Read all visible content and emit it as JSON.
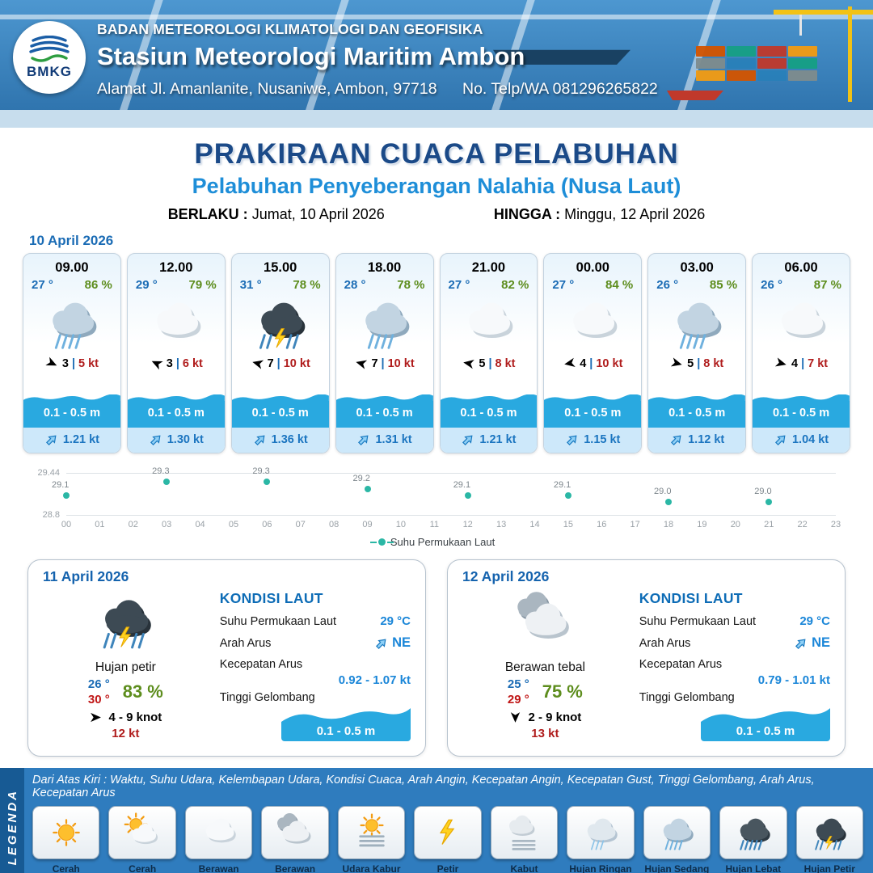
{
  "header": {
    "logo_text": "BMKG",
    "org": "BADAN METEOROLOGI KLIMATOLOGI DAN GEOFISIKA",
    "station": "Stasiun Meteorologi Maritim Ambon",
    "address": "Alamat Jl. Amanlanite, Nusaniwe, Ambon, 97718",
    "phone": "No. Telp/WA  081296265822"
  },
  "title": {
    "main": "PRAKIRAAN CUACA PELABUHAN",
    "subtitle": "Pelabuhan Penyeberangan Nalahia (Nusa Laut)",
    "valid_from_label": "BERLAKU :",
    "valid_from": "Jumat, 10 April 2026",
    "valid_to_label": "HINGGA :",
    "valid_to": "Minggu, 12 April 2026"
  },
  "hourly": {
    "date": "10 April 2026",
    "sep": "|",
    "cards": [
      {
        "time": "09.00",
        "temp": "27 °",
        "rh": "86 %",
        "icon": "hujan-sedang",
        "wind": "3",
        "gust": "5 kt",
        "wind_dir_deg": 25,
        "wave": "0.1 - 0.5 m",
        "current": "1.21 kt"
      },
      {
        "time": "12.00",
        "temp": "29 °",
        "rh": "79 %",
        "icon": "berawan",
        "wind": "3",
        "gust": "6 kt",
        "wind_dir_deg": 205,
        "wave": "0.1 - 0.5 m",
        "current": "1.30 kt"
      },
      {
        "time": "15.00",
        "temp": "31 °",
        "rh": "78 %",
        "icon": "hujan-petir",
        "wind": "7",
        "gust": "10 kt",
        "wind_dir_deg": 195,
        "wave": "0.1 - 0.5 m",
        "current": "1.36 kt"
      },
      {
        "time": "18.00",
        "temp": "28 °",
        "rh": "78 %",
        "icon": "hujan-sedang",
        "wind": "7",
        "gust": "10 kt",
        "wind_dir_deg": 195,
        "wave": "0.1 - 0.5 m",
        "current": "1.31 kt"
      },
      {
        "time": "21.00",
        "temp": "27 °",
        "rh": "82 %",
        "icon": "berawan",
        "wind": "5",
        "gust": "8 kt",
        "wind_dir_deg": 190,
        "wave": "0.1 - 0.5 m",
        "current": "1.21 kt"
      },
      {
        "time": "00.00",
        "temp": "27 °",
        "rh": "84 %",
        "icon": "berawan",
        "wind": "4",
        "gust": "10 kt",
        "wind_dir_deg": 170,
        "wave": "0.1 - 0.5 m",
        "current": "1.15 kt"
      },
      {
        "time": "03.00",
        "temp": "26 °",
        "rh": "85 %",
        "icon": "hujan-sedang",
        "wind": "5",
        "gust": "8 kt",
        "wind_dir_deg": 15,
        "wave": "0.1 - 0.5 m",
        "current": "1.12 kt"
      },
      {
        "time": "06.00",
        "temp": "26 °",
        "rh": "87 %",
        "icon": "berawan",
        "wind": "4",
        "gust": "7 kt",
        "wind_dir_deg": 15,
        "wave": "0.1 - 0.5 m",
        "current": "1.04 kt"
      }
    ]
  },
  "chart_data": {
    "type": "scatter",
    "title": "Suhu Permukaan Laut",
    "legend": "Suhu Permukaan Laut",
    "point_color": "#2bb7a5",
    "ylim": [
      28.8,
      29.44
    ],
    "y_tick_labels": [
      "29.44",
      "28.8"
    ],
    "x_ticks": [
      "00",
      "01",
      "02",
      "03",
      "04",
      "05",
      "06",
      "07",
      "08",
      "09",
      "10",
      "11",
      "12",
      "13",
      "14",
      "15",
      "16",
      "17",
      "18",
      "19",
      "20",
      "21",
      "22",
      "23"
    ],
    "series": [
      {
        "name": "Suhu Permukaan Laut",
        "points": [
          {
            "x": 0,
            "y": 29.1
          },
          {
            "x": 3,
            "y": 29.3
          },
          {
            "x": 6,
            "y": 29.3
          },
          {
            "x": 9,
            "y": 29.2
          },
          {
            "x": 12,
            "y": 29.1
          },
          {
            "x": 15,
            "y": 29.1
          },
          {
            "x": 18,
            "y": 29.0
          },
          {
            "x": 21,
            "y": 29.0
          }
        ]
      }
    ]
  },
  "daily": [
    {
      "date": "11 April 2026",
      "icon": "hujan-petir",
      "condition": "Hujan petir",
      "temp_min": "26 °",
      "temp_max": "30 °",
      "rh": "83 %",
      "wind": "4  - 9 knot",
      "gust": "12 kt",
      "wind_dir_deg": 0,
      "sea": {
        "heading": "KONDISI LAUT",
        "sst_label": "Suhu Permukaan Laut",
        "sst": "29 °C",
        "dir_label": "Arah Arus",
        "dir": "NE",
        "spd_label": "Kecepatan Arus",
        "spd": "0.92 - 1.07 kt",
        "wave_label": "Tinggi Gelombang",
        "wave": "0.1 - 0.5 m"
      }
    },
    {
      "date": "12 April 2026",
      "icon": "berawan-tebal",
      "condition": "Berawan tebal",
      "temp_min": "25 °",
      "temp_max": "29 °",
      "rh": "75 %",
      "wind": "2  - 9 knot",
      "gust": "13 kt",
      "wind_dir_deg": 90,
      "sea": {
        "heading": "KONDISI LAUT",
        "sst_label": "Suhu Permukaan Laut",
        "sst": "29 °C",
        "dir_label": "Arah Arus",
        "dir": "NE",
        "spd_label": "Kecepatan Arus",
        "spd": "0.79 - 1.01 kt",
        "wave_label": "Tinggi Gelombang",
        "wave": "0.1 - 0.5 m"
      }
    }
  ],
  "legend": {
    "vertical_label": "LEGENDA",
    "note": "Dari Atas Kiri : Waktu, Suhu Udara, Kelembapan Udara, Kondisi Cuaca, Arah Angin, Kecepatan Angin, Kecepatan Gust, Tinggi Gelombang, Arah Arus, Kecepatan Arus",
    "items": [
      {
        "label": "Cerah",
        "icon": "cerah"
      },
      {
        "label": "Cerah Berawan",
        "icon": "cerah-berawan"
      },
      {
        "label": "Berawan",
        "icon": "berawan"
      },
      {
        "label": "Berawan Tebal",
        "icon": "berawan-tebal"
      },
      {
        "label": "Udara Kabur",
        "icon": "udara-kabur"
      },
      {
        "label": "Petir",
        "icon": "petir"
      },
      {
        "label": "Kabut",
        "icon": "kabut"
      },
      {
        "label": "Hujan Ringan",
        "icon": "hujan-ringan"
      },
      {
        "label": "Hujan Sedang",
        "icon": "hujan-sedang"
      },
      {
        "label": "Hujan Lebat",
        "icon": "hujan-lebat"
      },
      {
        "label": "Hujan Petir",
        "icon": "hujan-petir"
      }
    ]
  }
}
